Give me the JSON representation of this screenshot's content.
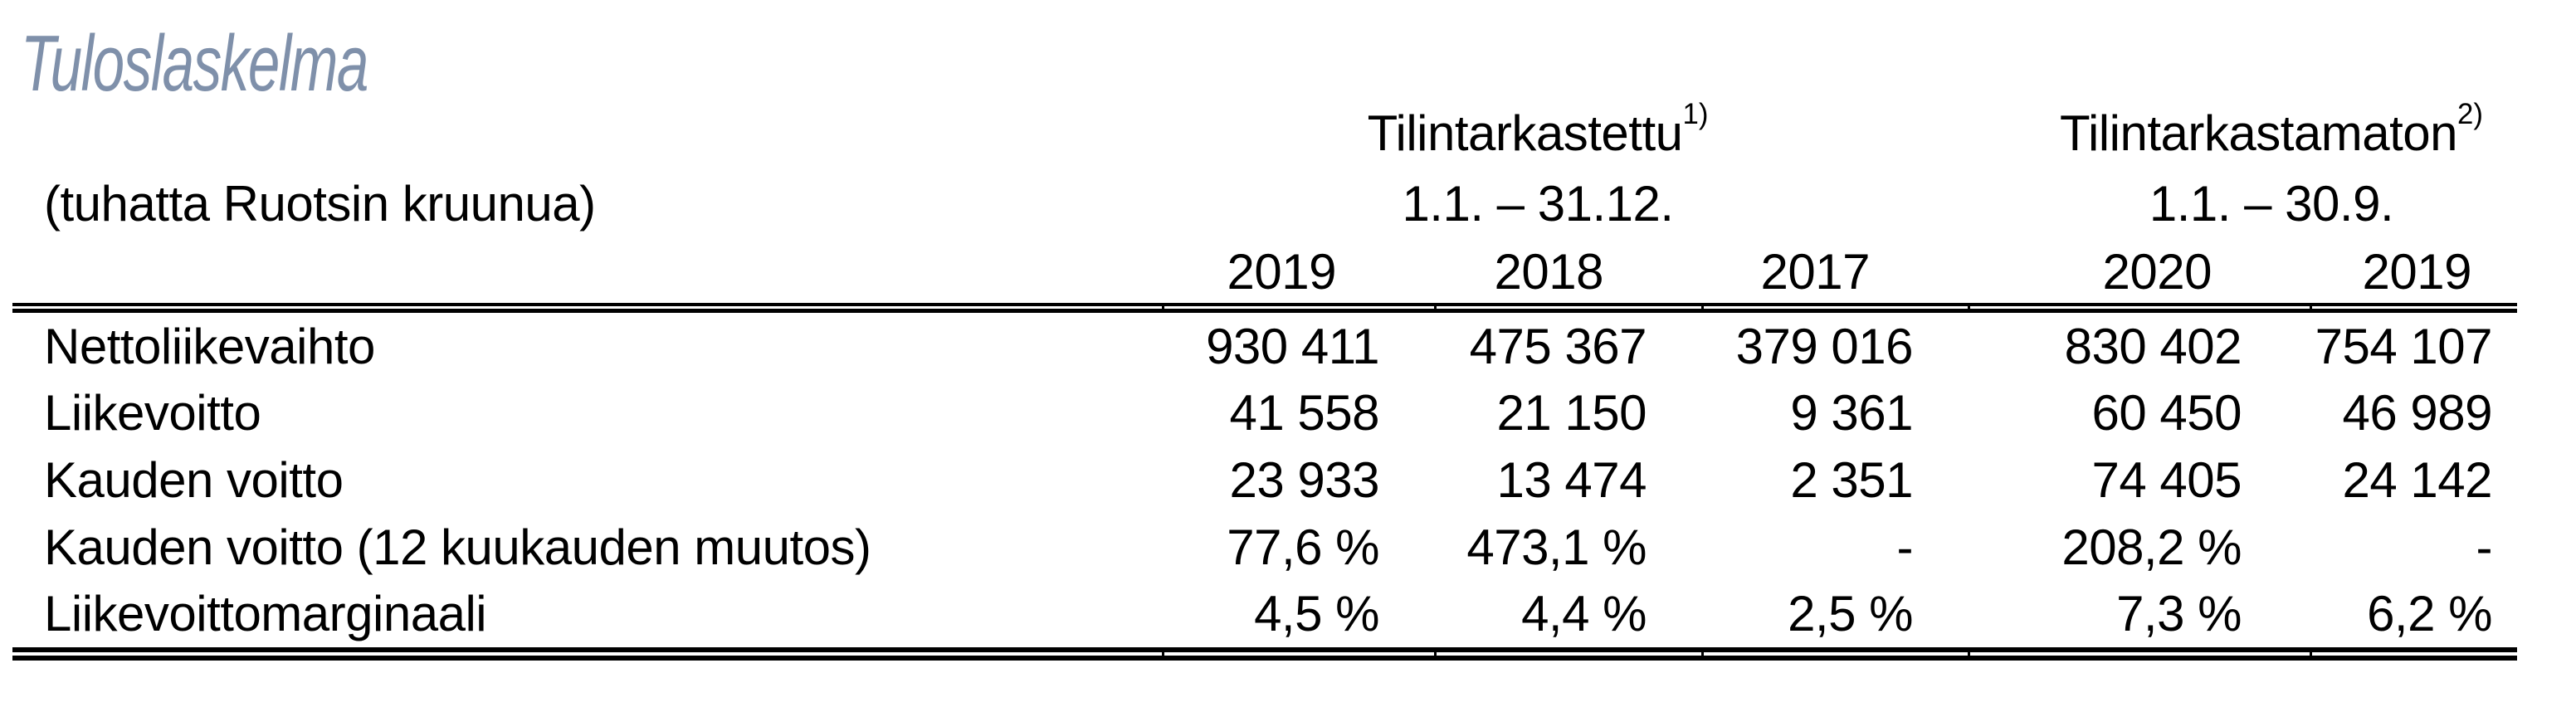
{
  "title": "Tuloslaskelma",
  "table": {
    "unit_label": "(tuhatta Ruotsin kruunua)",
    "groups": [
      {
        "label": "Tilintarkastettu",
        "footnote": "1)",
        "period": "1.1. – 31.12."
      },
      {
        "label": "Tilintarkastamaton",
        "footnote": "2)",
        "period": "1.1. – 30.9."
      }
    ],
    "year_headers": [
      "2019",
      "2018",
      "2017",
      "2020",
      "2019"
    ],
    "rows": [
      {
        "label": "Nettoliikevaihto",
        "values": [
          "930 411",
          "475 367",
          "379 016",
          "830 402",
          "754 107"
        ]
      },
      {
        "label": "Liikevoitto",
        "values": [
          "41 558",
          "21 150",
          "9 361",
          "60 450",
          "46 989"
        ]
      },
      {
        "label": "Kauden voitto",
        "values": [
          "23 933",
          "13 474",
          "2 351",
          "74 405",
          "24 142"
        ]
      },
      {
        "label": "Kauden voitto (12 kuukauden muutos)",
        "values": [
          "77,6 %",
          "473,1 %",
          "-",
          "208,2 %",
          "-"
        ]
      },
      {
        "label": "Liikevoittomarginaali",
        "values": [
          "4,5 %",
          "4,4 %",
          "2,5 %",
          "7,3 %",
          "6,2 %"
        ]
      }
    ]
  },
  "colors": {
    "title_text": "#7f90aa",
    "body_text": "#000000",
    "rule": "#000000",
    "background": "#ffffff"
  }
}
